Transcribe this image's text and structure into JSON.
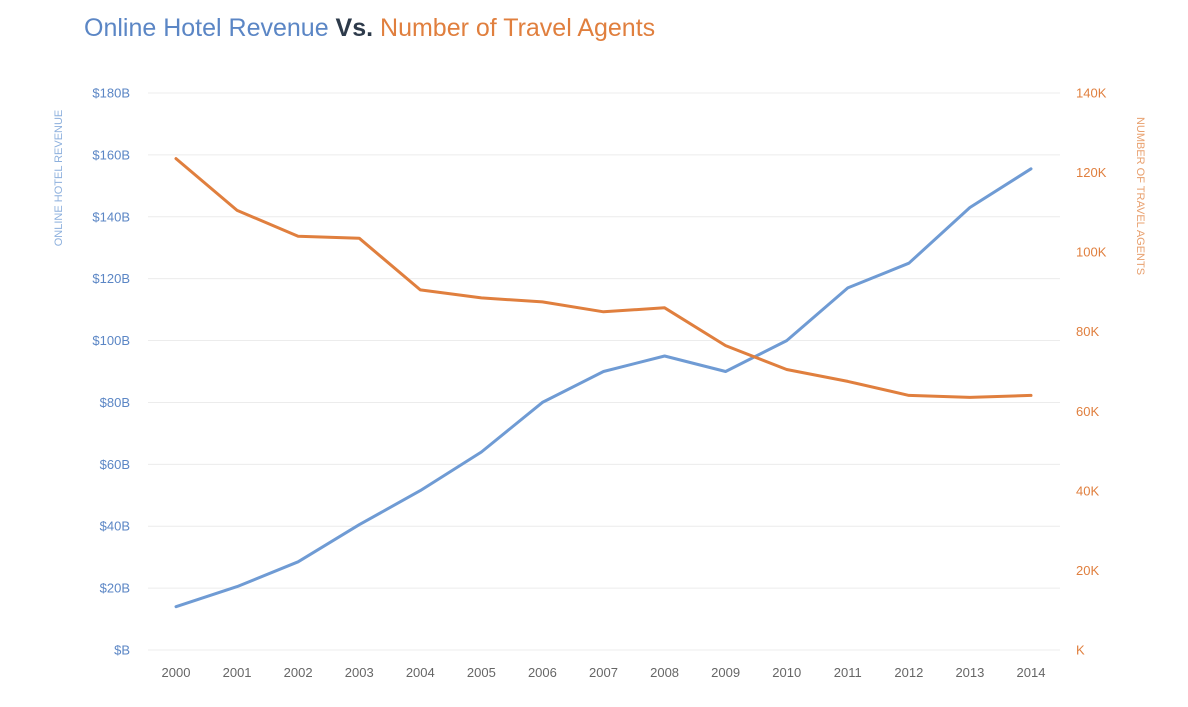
{
  "title": {
    "left": "Online Hotel Revenue",
    "mid": " Vs. ",
    "right": "Number of Travel Agents"
  },
  "colors": {
    "revenue": "#6f9bd4",
    "agents": "#e07f3e",
    "grid": "#ececec"
  },
  "chart_data": {
    "type": "line",
    "title": "Online Hotel Revenue Vs. Number of Travel Agents",
    "x": [
      "2000",
      "2001",
      "2002",
      "2003",
      "2004",
      "2005",
      "2006",
      "2007",
      "2008",
      "2009",
      "2010",
      "2011",
      "2012",
      "2013",
      "2014"
    ],
    "series": [
      {
        "name": "Online Hotel Revenue",
        "axis": "left",
        "values": [
          14,
          20.5,
          28.5,
          40.5,
          51.5,
          64,
          80,
          90,
          95,
          90,
          100,
          117,
          125,
          143,
          155.5
        ]
      },
      {
        "name": "Number of Travel Agents",
        "axis": "right",
        "values": [
          123500,
          110500,
          104000,
          103500,
          90500,
          88500,
          87500,
          85000,
          86000,
          76500,
          70500,
          67500,
          64000,
          63500,
          64000
        ]
      }
    ],
    "y_left": {
      "label": "ONLINE HOTEL REVENUE",
      "range": [
        0,
        180
      ],
      "ticks": [
        "$B",
        "$20B",
        "$40B",
        "$60B",
        "$80B",
        "$100B",
        "$120B",
        "$140B",
        "$160B",
        "$180B"
      ]
    },
    "y_right": {
      "label": "NUMBER OF TRAVEL AGENTS",
      "range": [
        0,
        140000
      ],
      "ticks": [
        "K",
        "20K",
        "40K",
        "60K",
        "80K",
        "100K",
        "120K",
        "140K"
      ]
    },
    "grid": true,
    "legend": "title"
  }
}
